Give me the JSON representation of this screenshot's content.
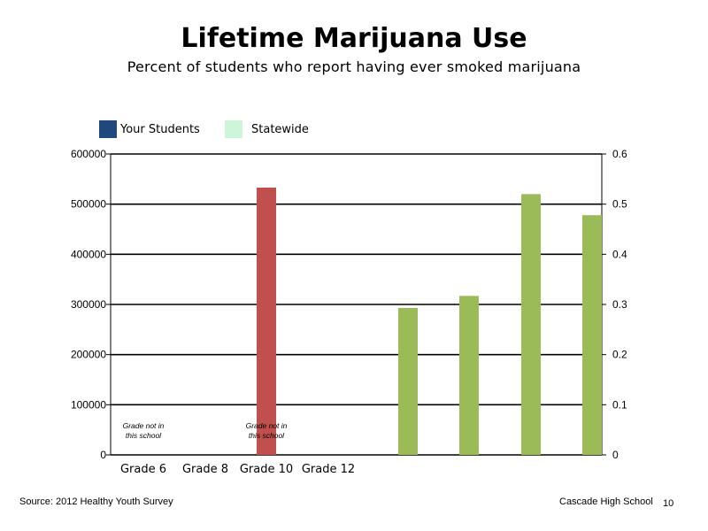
{
  "title": "Lifetime Marijuana Use",
  "subtitle": "Percent of students who report having ever smoked marijuana",
  "legend": [
    {
      "label": "Your Students",
      "color": "#1f497d"
    },
    {
      "label": "Statewide",
      "color": "#ccf5d9"
    }
  ],
  "footer": {
    "source": "Source: 2012 Healthy Youth Survey",
    "school": "Cascade High School",
    "page": "10"
  },
  "chart_data": {
    "type": "bar",
    "categories": [
      "Grade 6",
      "Grade 8",
      "Grade 10",
      "Grade 12"
    ],
    "left_axis": {
      "ticks": [
        "0",
        "100000",
        "200000",
        "300000",
        "400000",
        "500000",
        "600000"
      ],
      "ylim": [
        0,
        600000
      ]
    },
    "right_axis": {
      "ticks": [
        "0",
        "0.1",
        "0.2",
        "0.3",
        "0.4",
        "0.5",
        "0.6"
      ],
      "ylim": [
        0,
        0.6
      ]
    },
    "grid": true,
    "legend_position": "top-left",
    "bars": [
      {
        "axis": "left",
        "value": 533000,
        "color": "#c0504d"
      },
      {
        "axis": "right",
        "value": 0.293,
        "color": "#9bbb59"
      },
      {
        "axis": "right",
        "value": 0.317,
        "color": "#9bbb59"
      },
      {
        "axis": "right",
        "value": 0.52,
        "color": "#9bbb59"
      },
      {
        "axis": "right",
        "value": 0.478,
        "color": "#9bbb59"
      }
    ],
    "annotations": [
      {
        "category": "Grade 6",
        "lines": [
          "Grade not in",
          "this school"
        ]
      },
      {
        "category": "Grade 10",
        "lines": [
          "Grade not in",
          "this school"
        ]
      }
    ]
  }
}
